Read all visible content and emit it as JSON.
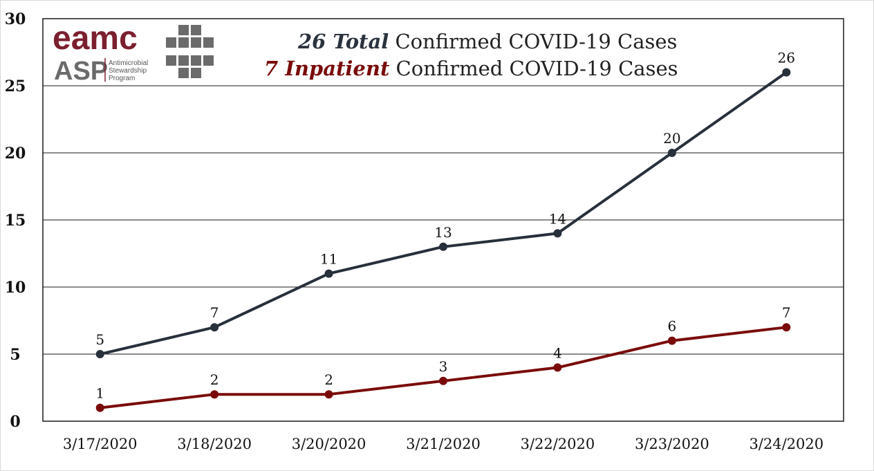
{
  "logo": {
    "brand": "eamc",
    "brand_color": "#7b1f2e",
    "program": "ASP",
    "program_desc": [
      "Antimicrobial",
      "Stewardship",
      "Program"
    ],
    "mark": "cross-grid-icon",
    "mark_color": "#6b6b6b"
  },
  "title": {
    "line1_emph": "26 Total",
    "line1_rest": " Confirmed COVID-19 Cases",
    "line2_emph": "7 Inpatient",
    "line2_rest": " Confirmed COVID-19 Cases",
    "line1_color": "#2a323d",
    "line2_color": "#7a0a0a"
  },
  "chart_data": {
    "type": "line",
    "categories": [
      "3/17/2020",
      "3/18/2020",
      "3/20/2020",
      "3/21/2020",
      "3/22/2020",
      "3/23/2020",
      "3/24/2020"
    ],
    "series": [
      {
        "values": [
          5,
          7,
          11,
          13,
          14,
          20,
          26
        ],
        "color": "#27303b"
      },
      {
        "values": [
          1,
          2,
          2,
          3,
          4,
          6,
          7
        ],
        "color": "#7a0a0a"
      }
    ],
    "ylim": [
      0,
      30
    ],
    "yticks": [
      0,
      5,
      10,
      15,
      20,
      25,
      30
    ],
    "grid": true,
    "data_labels": true
  }
}
